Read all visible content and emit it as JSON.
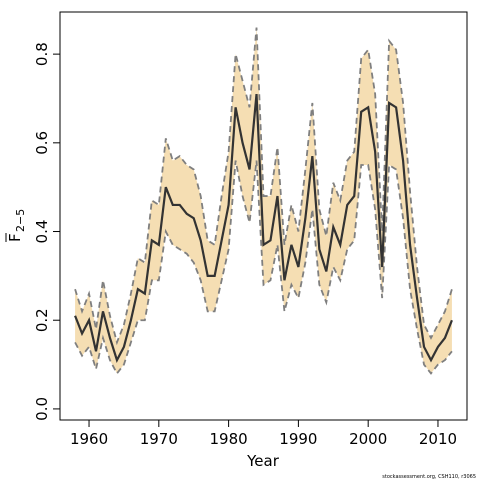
{
  "chart_data": {
    "type": "line",
    "xlabel": "Year",
    "ylabel": "F",
    "ylabel_sub": "2−5",
    "note": "stockassessment.org, CSH110, r3065",
    "x": [
      1958,
      1959,
      1960,
      1961,
      1962,
      1963,
      1964,
      1965,
      1966,
      1967,
      1968,
      1969,
      1970,
      1971,
      1972,
      1973,
      1974,
      1975,
      1976,
      1977,
      1978,
      1979,
      1980,
      1981,
      1982,
      1983,
      1984,
      1985,
      1986,
      1987,
      1988,
      1989,
      1990,
      1991,
      1992,
      1993,
      1994,
      1995,
      1996,
      1997,
      1998,
      1999,
      2000,
      2001,
      2002,
      2003,
      2004,
      2005,
      2006,
      2007,
      2008,
      2009,
      2010,
      2011,
      2012
    ],
    "values": [
      0.21,
      0.17,
      0.2,
      0.13,
      0.22,
      0.16,
      0.11,
      0.14,
      0.2,
      0.27,
      0.26,
      0.38,
      0.37,
      0.5,
      0.46,
      0.46,
      0.44,
      0.43,
      0.38,
      0.3,
      0.3,
      0.38,
      0.46,
      0.68,
      0.6,
      0.54,
      0.71,
      0.37,
      0.38,
      0.48,
      0.29,
      0.37,
      0.32,
      0.43,
      0.57,
      0.36,
      0.31,
      0.41,
      0.37,
      0.46,
      0.48,
      0.67,
      0.68,
      0.58,
      0.32,
      0.69,
      0.68,
      0.56,
      0.37,
      0.25,
      0.14,
      0.11,
      0.14,
      0.16,
      0.2
    ],
    "lower": [
      0.15,
      0.12,
      0.14,
      0.09,
      0.16,
      0.11,
      0.08,
      0.1,
      0.15,
      0.2,
      0.2,
      0.29,
      0.29,
      0.4,
      0.37,
      0.36,
      0.35,
      0.33,
      0.29,
      0.22,
      0.22,
      0.29,
      0.36,
      0.56,
      0.48,
      0.42,
      0.56,
      0.28,
      0.29,
      0.37,
      0.22,
      0.28,
      0.25,
      0.33,
      0.45,
      0.28,
      0.24,
      0.32,
      0.29,
      0.36,
      0.38,
      0.55,
      0.55,
      0.45,
      0.25,
      0.55,
      0.54,
      0.43,
      0.27,
      0.18,
      0.1,
      0.08,
      0.1,
      0.11,
      0.13
    ],
    "upper": [
      0.27,
      0.22,
      0.26,
      0.18,
      0.29,
      0.21,
      0.15,
      0.19,
      0.26,
      0.34,
      0.33,
      0.47,
      0.46,
      0.61,
      0.56,
      0.57,
      0.55,
      0.54,
      0.48,
      0.38,
      0.37,
      0.48,
      0.58,
      0.8,
      0.74,
      0.68,
      0.86,
      0.48,
      0.48,
      0.59,
      0.37,
      0.46,
      0.4,
      0.54,
      0.69,
      0.45,
      0.39,
      0.51,
      0.47,
      0.56,
      0.58,
      0.79,
      0.81,
      0.71,
      0.4,
      0.83,
      0.81,
      0.69,
      0.49,
      0.32,
      0.19,
      0.16,
      0.19,
      0.22,
      0.27
    ],
    "color": "#333333",
    "band_color": "#f5deb3",
    "band_edge_color": "#7f7f7f",
    "xlim": [
      1955.84,
      2014.16
    ],
    "ylim": [
      -0.025,
      0.895
    ],
    "xticks": [
      1960,
      1970,
      1980,
      1990,
      2000,
      2010
    ],
    "yticks": [
      {
        "value": 0,
        "label": "0.0"
      },
      0.2,
      0.4,
      0.6,
      0.8
    ]
  }
}
